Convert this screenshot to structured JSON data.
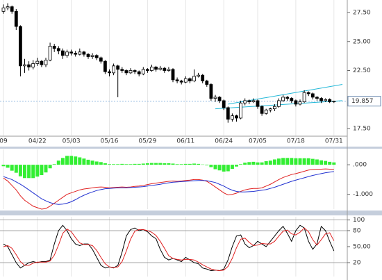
{
  "chart_data": [
    {
      "type": "candlestick",
      "categories": [
        "09",
        null,
        null,
        null,
        null,
        null,
        null,
        null,
        "04/22",
        null,
        null,
        null,
        null,
        null,
        null,
        null,
        "05/03",
        null,
        null,
        null,
        null,
        null,
        null,
        null,
        null,
        "05/16",
        null,
        null,
        null,
        null,
        null,
        null,
        null,
        null,
        "05/29",
        null,
        null,
        null,
        null,
        null,
        null,
        null,
        null,
        "06/11",
        null,
        null,
        null,
        null,
        null,
        null,
        null,
        null,
        "06/24",
        null,
        null,
        null,
        null,
        null,
        null,
        null,
        "07/05",
        null,
        null,
        null,
        null,
        null,
        null,
        null,
        null,
        "07/18",
        null,
        null,
        null,
        null,
        null,
        null,
        null,
        null,
        "07/31"
      ],
      "ohlc": [
        [
          27.6,
          28.2,
          27.4,
          27.9
        ],
        [
          27.9,
          28.3,
          27.7,
          28.0
        ],
        [
          28.0,
          28.1,
          27.4,
          27.6
        ],
        [
          27.6,
          27.8,
          26.0,
          26.3
        ],
        [
          26.3,
          26.4,
          22.0,
          22.9
        ],
        [
          22.9,
          23.5,
          22.3,
          23.0
        ],
        [
          23.0,
          23.3,
          22.5,
          22.8
        ],
        [
          22.8,
          23.4,
          22.6,
          23.1
        ],
        [
          23.1,
          23.6,
          22.9,
          23.3
        ],
        [
          23.3,
          23.4,
          22.8,
          23.0
        ],
        [
          23.0,
          23.6,
          22.8,
          23.4
        ],
        [
          23.4,
          24.9,
          23.3,
          24.6
        ],
        [
          24.6,
          24.8,
          24.1,
          24.4
        ],
        [
          24.4,
          24.6,
          23.9,
          24.2
        ],
        [
          24.2,
          24.4,
          23.5,
          23.8
        ],
        [
          23.8,
          24.3,
          23.6,
          24.1
        ],
        [
          24.1,
          24.3,
          23.8,
          24.0
        ],
        [
          24.0,
          24.2,
          23.7,
          23.9
        ],
        [
          23.9,
          24.4,
          23.8,
          24.1
        ],
        [
          24.1,
          24.2,
          23.7,
          23.9
        ],
        [
          23.9,
          24.0,
          23.5,
          23.7
        ],
        [
          23.7,
          24.0,
          23.5,
          23.8
        ],
        [
          23.8,
          23.9,
          23.4,
          23.6
        ],
        [
          23.6,
          23.7,
          23.1,
          23.3
        ],
        [
          23.3,
          23.4,
          22.2,
          22.4
        ],
        [
          22.4,
          22.6,
          22.0,
          22.3
        ],
        [
          22.3,
          23.1,
          22.1,
          22.9
        ],
        [
          22.9,
          23.0,
          20.2,
          22.6
        ],
        [
          22.6,
          22.8,
          22.3,
          22.5
        ],
        [
          22.5,
          22.6,
          22.1,
          22.3
        ],
        [
          22.3,
          22.7,
          22.2,
          22.5
        ],
        [
          22.5,
          22.6,
          22.2,
          22.4
        ],
        [
          22.4,
          22.5,
          22.0,
          22.2
        ],
        [
          22.2,
          22.8,
          22.1,
          22.6
        ],
        [
          22.6,
          22.7,
          22.3,
          22.5
        ],
        [
          22.5,
          23.0,
          22.4,
          22.8
        ],
        [
          22.8,
          22.9,
          22.4,
          22.6
        ],
        [
          22.6,
          22.9,
          22.5,
          22.7
        ],
        [
          22.7,
          22.8,
          22.3,
          22.5
        ],
        [
          22.5,
          22.8,
          22.4,
          22.6
        ],
        [
          22.6,
          22.7,
          21.5,
          21.7
        ],
        [
          21.7,
          21.9,
          21.4,
          21.6
        ],
        [
          21.6,
          21.7,
          21.3,
          21.5
        ],
        [
          21.5,
          22.0,
          21.4,
          21.8
        ],
        [
          21.8,
          21.9,
          21.4,
          21.6
        ],
        [
          21.6,
          22.6,
          21.5,
          22.0
        ],
        [
          22.0,
          22.3,
          21.9,
          22.1
        ],
        [
          22.1,
          22.2,
          21.4,
          21.6
        ],
        [
          21.6,
          21.7,
          21.1,
          21.3
        ],
        [
          21.3,
          21.4,
          19.9,
          20.1
        ],
        [
          20.1,
          20.4,
          19.8,
          20.2
        ],
        [
          20.2,
          20.3,
          19.7,
          19.9
        ],
        [
          19.9,
          20.0,
          19.1,
          19.3
        ],
        [
          19.3,
          19.4,
          18.0,
          18.3
        ],
        [
          18.3,
          18.8,
          18.1,
          18.6
        ],
        [
          18.6,
          18.7,
          18.1,
          18.4
        ],
        [
          18.4,
          19.9,
          18.3,
          19.7
        ],
        [
          19.7,
          20.1,
          19.5,
          19.9
        ],
        [
          19.9,
          20.0,
          19.6,
          19.8
        ],
        [
          19.8,
          20.1,
          19.7,
          19.9
        ],
        [
          19.9,
          20.0,
          19.2,
          19.4
        ],
        [
          19.4,
          19.5,
          18.6,
          18.8
        ],
        [
          18.8,
          19.2,
          18.7,
          19.1
        ],
        [
          19.1,
          19.3,
          18.9,
          19.2
        ],
        [
          19.2,
          19.6,
          19.0,
          19.4
        ],
        [
          19.4,
          20.1,
          19.3,
          19.9
        ],
        [
          19.9,
          20.4,
          19.8,
          20.2
        ],
        [
          20.2,
          20.3,
          19.9,
          20.1
        ],
        [
          20.1,
          20.2,
          19.7,
          19.9
        ],
        [
          19.9,
          20.0,
          19.4,
          19.6
        ],
        [
          19.6,
          20.0,
          19.5,
          19.8
        ],
        [
          19.8,
          20.8,
          19.7,
          20.6
        ],
        [
          20.6,
          20.7,
          20.3,
          20.5
        ],
        [
          20.5,
          20.6,
          20.0,
          20.2
        ],
        [
          20.2,
          20.3,
          19.9,
          20.1
        ],
        [
          20.1,
          20.2,
          19.7,
          19.9
        ],
        [
          19.9,
          20.1,
          19.8,
          20.0
        ],
        [
          20.0,
          20.1,
          19.7,
          19.8
        ],
        [
          19.8,
          19.9,
          19.7,
          19.857
        ]
      ],
      "up_color": "#ffffff",
      "down_color": "#000000",
      "ylim": [
        16.9,
        28.58
      ],
      "yticks": [
        {
          "value": 17.5,
          "label": "17.50"
        },
        {
          "value": 22.5,
          "label": "22.50"
        },
        {
          "value": 25,
          "label": "25.00"
        },
        {
          "value": 27.5,
          "label": "27.50"
        }
      ],
      "last_price": 19.857,
      "trendlines": [
        {
          "x": [
            53,
            80
          ],
          "y": [
            19.6,
            21.3
          ],
          "color": "#22b8d8"
        },
        {
          "x": [
            50,
            80
          ],
          "y": [
            19.2,
            19.9
          ],
          "color": "#22b8d8"
        }
      ]
    },
    {
      "type": "macd",
      "series": [
        {
          "type": "bar",
          "color": "#33ee33",
          "values": [
            -0.05,
            -0.1,
            -0.2,
            -0.27,
            -0.39,
            -0.45,
            -0.45,
            -0.45,
            -0.4,
            -0.35,
            -0.26,
            -0.12,
            0.02,
            0.14,
            0.23,
            0.3,
            0.3,
            0.28,
            0.25,
            0.21,
            0.17,
            0.14,
            0.11,
            0.09,
            0.05,
            0.02,
            0.02,
            0.02,
            0.03,
            0.02,
            0.02,
            0.03,
            0.03,
            0.04,
            0.05,
            0.06,
            0.06,
            0.06,
            0.05,
            0.05,
            0.04,
            0.02,
            0.02,
            0.03,
            0.03,
            0.04,
            0.03,
            0.01,
            -0.02,
            -0.08,
            -0.15,
            -0.19,
            -0.23,
            -0.22,
            -0.14,
            -0.06,
            0.02,
            0.07,
            0.09,
            0.1,
            0.08,
            0.08,
            0.12,
            0.14,
            0.18,
            0.21,
            0.23,
            0.23,
            0.23,
            0.22,
            0.22,
            0.22,
            0.22,
            0.2,
            0.18,
            0.15,
            0.13,
            0.1,
            0.08
          ]
        },
        {
          "type": "line",
          "color": "#e02020",
          "values": [
            -0.45,
            -0.55,
            -0.7,
            -0.85,
            -1.05,
            -1.2,
            -1.3,
            -1.4,
            -1.45,
            -1.5,
            -1.48,
            -1.4,
            -1.3,
            -1.2,
            -1.1,
            -1.0,
            -0.95,
            -0.9,
            -0.85,
            -0.82,
            -0.8,
            -0.78,
            -0.76,
            -0.75,
            -0.76,
            -0.78,
            -0.77,
            -0.76,
            -0.75,
            -0.76,
            -0.75,
            -0.73,
            -0.72,
            -0.7,
            -0.67,
            -0.64,
            -0.62,
            -0.6,
            -0.58,
            -0.56,
            -0.55,
            -0.56,
            -0.55,
            -0.53,
            -0.52,
            -0.5,
            -0.5,
            -0.52,
            -0.56,
            -0.65,
            -0.75,
            -0.85,
            -0.95,
            -1.02,
            -1.0,
            -0.96,
            -0.9,
            -0.85,
            -0.82,
            -0.8,
            -0.8,
            -0.78,
            -0.72,
            -0.66,
            -0.58,
            -0.5,
            -0.43,
            -0.38,
            -0.33,
            -0.3,
            -0.26,
            -0.22,
            -0.18,
            -0.16,
            -0.15,
            -0.15,
            -0.14,
            -0.15,
            -0.15
          ]
        },
        {
          "type": "line",
          "color": "#2030d0",
          "values": [
            -0.4,
            -0.45,
            -0.5,
            -0.58,
            -0.66,
            -0.75,
            -0.85,
            -0.95,
            -1.05,
            -1.15,
            -1.22,
            -1.28,
            -1.32,
            -1.34,
            -1.33,
            -1.3,
            -1.25,
            -1.18,
            -1.1,
            -1.03,
            -0.97,
            -0.92,
            -0.87,
            -0.84,
            -0.81,
            -0.8,
            -0.79,
            -0.78,
            -0.78,
            -0.78,
            -0.77,
            -0.76,
            -0.75,
            -0.74,
            -0.72,
            -0.7,
            -0.68,
            -0.66,
            -0.63,
            -0.61,
            -0.59,
            -0.58,
            -0.57,
            -0.56,
            -0.55,
            -0.54,
            -0.53,
            -0.53,
            -0.54,
            -0.57,
            -0.6,
            -0.66,
            -0.72,
            -0.8,
            -0.86,
            -0.9,
            -0.92,
            -0.92,
            -0.91,
            -0.9,
            -0.88,
            -0.86,
            -0.84,
            -0.8,
            -0.76,
            -0.71,
            -0.66,
            -0.61,
            -0.56,
            -0.52,
            -0.48,
            -0.44,
            -0.4,
            -0.36,
            -0.33,
            -0.3,
            -0.27,
            -0.25,
            -0.23
          ]
        }
      ],
      "ylim": [
        -1.5,
        0.52
      ],
      "yticks": [
        {
          "value": -1,
          "label": "-1.000"
        },
        {
          "value": 0,
          "label": ".000"
        }
      ]
    },
    {
      "type": "stochastic",
      "series": [
        {
          "type": "line",
          "color": "#000000",
          "values": [
            55,
            50,
            35,
            20,
            10,
            15,
            20,
            22,
            20,
            22,
            22,
            25,
            55,
            80,
            90,
            80,
            65,
            55,
            52,
            55,
            55,
            45,
            30,
            15,
            10,
            12,
            10,
            15,
            40,
            70,
            82,
            85,
            80,
            82,
            78,
            70,
            65,
            45,
            30,
            25,
            28,
            25,
            22,
            30,
            25,
            20,
            18,
            10,
            8,
            5,
            6,
            5,
            8,
            25,
            50,
            70,
            72,
            55,
            48,
            52,
            60,
            55,
            50,
            60,
            70,
            80,
            88,
            75,
            60,
            80,
            90,
            85,
            60,
            45,
            55,
            88,
            80,
            60,
            42
          ]
        },
        {
          "type": "line",
          "color": "#e02020",
          "values": [
            50,
            52,
            47,
            35,
            22,
            15,
            15,
            19,
            21,
            21,
            21,
            23,
            34,
            53,
            75,
            83,
            78,
            67,
            57,
            54,
            54,
            52,
            43,
            30,
            18,
            12,
            11,
            12,
            22,
            42,
            64,
            79,
            82,
            82,
            80,
            77,
            71,
            60,
            47,
            33,
            28,
            26,
            25,
            26,
            26,
            25,
            21,
            16,
            12,
            8,
            6,
            5,
            6,
            13,
            28,
            48,
            64,
            66,
            58,
            52,
            53,
            56,
            55,
            55,
            60,
            70,
            79,
            81,
            74,
            72,
            77,
            85,
            78,
            63,
            53,
            63,
            74,
            76,
            61
          ]
        }
      ],
      "ylim": [
        -6,
        106
      ],
      "yticks": [
        20,
        {
          "value": 50,
          "label": "50.00"
        },
        80,
        100
      ],
      "hlines": [
        20,
        80,
        100
      ]
    }
  ]
}
